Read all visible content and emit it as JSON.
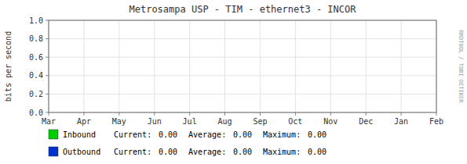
{
  "chart_data": {
    "type": "line",
    "title": "Metrosampa USP - TIM - ethernet3 - INCOR",
    "y_label": "bits per second",
    "categories": [
      "Mar",
      "Apr",
      "May",
      "Jun",
      "Jul",
      "Aug",
      "Sep",
      "Oct",
      "Nov",
      "Dec",
      "Jan",
      "Feb"
    ],
    "ylim": [
      0.0,
      1.0
    ],
    "yticks": [
      {
        "value": 0.0,
        "label": "0.0"
      },
      0.2,
      0.4,
      0.6,
      0.8,
      {
        "value": 1.0,
        "label": "1.0"
      }
    ],
    "grid": true,
    "stats_labels": [
      "Current:",
      "Average:",
      "Maximum:"
    ],
    "series": [
      {
        "name": "Inbound",
        "color": "#00cc00",
        "stats": [
          {
            "value": 0.0,
            "label": "0.00"
          },
          {
            "value": 0.0,
            "label": "0.00"
          },
          {
            "value": 0.0,
            "label": "0.00"
          }
        ]
      },
      {
        "name": "Outbound",
        "color": "#0033cc",
        "stats": [
          {
            "value": 0.0,
            "label": "0.00"
          },
          {
            "value": 0.0,
            "label": "0.00"
          },
          {
            "value": 0.0,
            "label": "0.00"
          }
        ]
      }
    ],
    "annotations": [
      "RRDTOOL / TOBI OETIKER"
    ]
  }
}
